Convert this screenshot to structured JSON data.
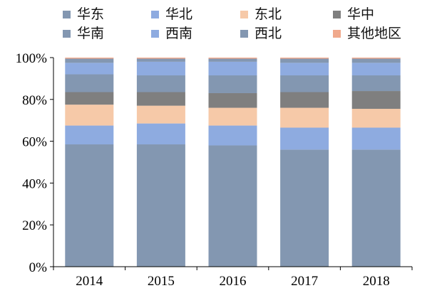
{
  "chart_data": {
    "type": "bar",
    "stacked": true,
    "categories": [
      "2014",
      "2015",
      "2016",
      "2017",
      "2018"
    ],
    "ylim": [
      0,
      100
    ],
    "yticks": [
      "0%",
      "20%",
      "40%",
      "60%",
      "80%",
      "100%"
    ],
    "xlabel": "",
    "ylabel": "",
    "legend_position": "top",
    "series": [
      {
        "name": "华东",
        "color": "#8397b1",
        "values": [
          58.5,
          58.5,
          58.0,
          56.0,
          56.0
        ]
      },
      {
        "name": "华北",
        "color": "#8eabe0",
        "values": [
          9.0,
          10.0,
          9.5,
          10.5,
          10.5
        ]
      },
      {
        "name": "东北",
        "color": "#f6c9a8",
        "values": [
          10.0,
          8.5,
          8.5,
          9.5,
          9.0
        ]
      },
      {
        "name": "华中",
        "color": "#7f7f7f",
        "values": [
          6.0,
          6.5,
          7.0,
          7.5,
          8.5
        ]
      },
      {
        "name": "华南",
        "color": "#8397b1",
        "values": [
          8.5,
          8.0,
          8.5,
          8.0,
          7.5
        ]
      },
      {
        "name": "西南",
        "color": "#8eabe0",
        "values": [
          5.5,
          6.5,
          6.5,
          6.0,
          6.0
        ]
      },
      {
        "name": "西北",
        "color": "#8397b1",
        "values": [
          2.0,
          1.5,
          1.5,
          2.0,
          2.0
        ]
      },
      {
        "name": "其他地区",
        "color": "#f0a98c",
        "values": [
          0.5,
          0.5,
          0.5,
          0.5,
          0.5
        ]
      }
    ]
  }
}
